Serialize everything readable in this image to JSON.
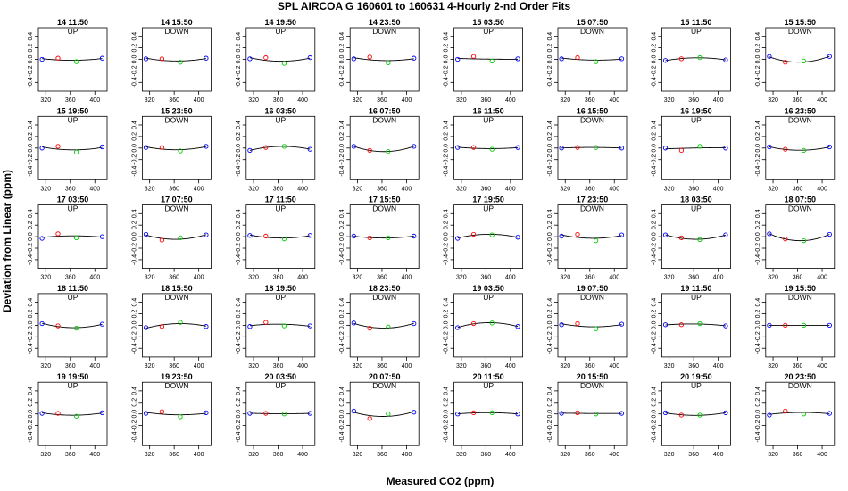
{
  "page_title": "SPL   AIRCOA G   160601 to 160631   4-Hourly 2-nd Order Fits",
  "y_label": "Deviation from Linear (ppm)",
  "x_label": "Measured CO2 (ppm)",
  "chart_data": {
    "type": "scatter",
    "title": "SPL   AIRCOA G   160601 to 160631   4-Hourly 2-nd Order Fits",
    "xlabel": "Measured CO2 (ppm)",
    "ylabel": "Deviation from Linear (ppm)",
    "xlim": [
      308,
      420
    ],
    "ylim": [
      -0.55,
      0.55
    ],
    "x_ticks": [
      320,
      360,
      400
    ],
    "x_tick_labels": [
      "320",
      "360",
      "400"
    ],
    "y_ticks": [
      0.4,
      0.2,
      0.0,
      -0.2,
      -0.4
    ],
    "y_tick_labels": [
      "0.4",
      "0.2",
      "0.0",
      "-0.2",
      "-0.4"
    ],
    "standards_co2": [
      314,
      340,
      370,
      412
    ],
    "point_colors": [
      "#0000ff",
      "#ff0000",
      "#00cc00",
      "#0000ff"
    ],
    "curve_color": "#000000",
    "grid": false,
    "panels": [
      {
        "title": "14 11:50",
        "label": "UP",
        "dev": [
          0.0,
          0.02,
          -0.04,
          0.02
        ]
      },
      {
        "title": "14 15:50",
        "label": "DOWN",
        "dev": [
          0.01,
          0.01,
          -0.05,
          0.02
        ]
      },
      {
        "title": "14 19:50",
        "label": "UP",
        "dev": [
          0.01,
          0.03,
          -0.07,
          0.03
        ]
      },
      {
        "title": "14 23:50",
        "label": "DOWN",
        "dev": [
          0.01,
          0.04,
          -0.06,
          0.02
        ]
      },
      {
        "title": "15 03:50",
        "label": "UP",
        "dev": [
          0.0,
          0.05,
          -0.03,
          0.01
        ]
      },
      {
        "title": "15 07:50",
        "label": "DOWN",
        "dev": [
          0.01,
          0.03,
          -0.04,
          0.01
        ]
      },
      {
        "title": "15 11:50",
        "label": "UP",
        "dev": [
          -0.02,
          0.01,
          0.03,
          -0.01
        ]
      },
      {
        "title": "15 15:50",
        "label": "DOWN",
        "dev": [
          0.05,
          -0.05,
          -0.03,
          0.05
        ]
      },
      {
        "title": "15 19:50",
        "label": "UP",
        "dev": [
          0.0,
          0.03,
          -0.07,
          0.02
        ]
      },
      {
        "title": "15 23:50",
        "label": "DOWN",
        "dev": [
          0.01,
          0.01,
          -0.05,
          0.03
        ]
      },
      {
        "title": "16 03:50",
        "label": "UP",
        "dev": [
          -0.04,
          0.01,
          0.03,
          -0.02
        ]
      },
      {
        "title": "16 07:50",
        "label": "DOWN",
        "dev": [
          0.03,
          -0.04,
          -0.06,
          0.03
        ]
      },
      {
        "title": "16 11:50",
        "label": "UP",
        "dev": [
          0.01,
          0.01,
          -0.02,
          0.01
        ]
      },
      {
        "title": "16 15:50",
        "label": "DOWN",
        "dev": [
          0.0,
          0.01,
          0.01,
          0.0
        ]
      },
      {
        "title": "16 19:50",
        "label": "UP",
        "dev": [
          0.0,
          -0.04,
          0.03,
          0.0
        ]
      },
      {
        "title": "16 23:50",
        "label": "DOWN",
        "dev": [
          0.02,
          -0.02,
          -0.04,
          0.02
        ]
      },
      {
        "title": "17 03:50",
        "label": "UP",
        "dev": [
          -0.03,
          0.05,
          -0.02,
          0.0
        ]
      },
      {
        "title": "17 07:50",
        "label": "DOWN",
        "dev": [
          0.04,
          -0.06,
          -0.02,
          0.03
        ]
      },
      {
        "title": "17 11:50",
        "label": "UP",
        "dev": [
          0.02,
          0.01,
          -0.04,
          0.02
        ]
      },
      {
        "title": "17 15:50",
        "label": "DOWN",
        "dev": [
          0.01,
          -0.02,
          -0.02,
          0.01
        ]
      },
      {
        "title": "17 19:50",
        "label": "UP",
        "dev": [
          -0.03,
          0.04,
          0.03,
          -0.01
        ]
      },
      {
        "title": "17 23:50",
        "label": "DOWN",
        "dev": [
          0.01,
          0.04,
          -0.07,
          0.03
        ]
      },
      {
        "title": "18 03:50",
        "label": "UP",
        "dev": [
          0.03,
          -0.02,
          -0.05,
          0.03
        ]
      },
      {
        "title": "18 07:50",
        "label": "DOWN",
        "dev": [
          0.05,
          -0.04,
          -0.07,
          0.04
        ]
      },
      {
        "title": "18 11:50",
        "label": "UP",
        "dev": [
          0.03,
          -0.01,
          -0.05,
          0.02
        ]
      },
      {
        "title": "18 15:50",
        "label": "DOWN",
        "dev": [
          -0.04,
          -0.02,
          0.05,
          -0.02
        ]
      },
      {
        "title": "18 19:50",
        "label": "UP",
        "dev": [
          -0.02,
          0.05,
          -0.01,
          -0.01
        ]
      },
      {
        "title": "18 23:50",
        "label": "DOWN",
        "dev": [
          0.04,
          -0.05,
          -0.03,
          0.03
        ]
      },
      {
        "title": "19 03:50",
        "label": "UP",
        "dev": [
          -0.04,
          0.03,
          0.04,
          -0.02
        ]
      },
      {
        "title": "19 07:50",
        "label": "DOWN",
        "dev": [
          0.01,
          0.03,
          -0.06,
          0.02
        ]
      },
      {
        "title": "19 11:50",
        "label": "UP",
        "dev": [
          0.01,
          0.01,
          0.03,
          -0.01
        ]
      },
      {
        "title": "19 15:50",
        "label": "DOWN",
        "dev": [
          0.0,
          0.0,
          0.0,
          0.0
        ]
      },
      {
        "title": "19 19:50",
        "label": "UP",
        "dev": [
          0.01,
          0.01,
          -0.04,
          0.02
        ]
      },
      {
        "title": "19 23:50",
        "label": "DOWN",
        "dev": [
          0.01,
          0.04,
          -0.05,
          0.02
        ]
      },
      {
        "title": "20 03:50",
        "label": "UP",
        "dev": [
          0.01,
          0.01,
          0.0,
          0.01
        ]
      },
      {
        "title": "20 07:50",
        "label": "DOWN",
        "dev": [
          0.05,
          -0.08,
          0.0,
          0.03
        ]
      },
      {
        "title": "20 11:50",
        "label": "UP",
        "dev": [
          0.0,
          0.02,
          0.02,
          0.0
        ]
      },
      {
        "title": "20 15:50",
        "label": "DOWN",
        "dev": [
          0.01,
          0.02,
          0.0,
          0.01
        ]
      },
      {
        "title": "20 19:50",
        "label": "UP",
        "dev": [
          0.02,
          -0.02,
          -0.02,
          0.02
        ]
      },
      {
        "title": "20 23:50",
        "label": "DOWN",
        "dev": [
          -0.02,
          0.05,
          0.0,
          0.01
        ]
      }
    ]
  }
}
